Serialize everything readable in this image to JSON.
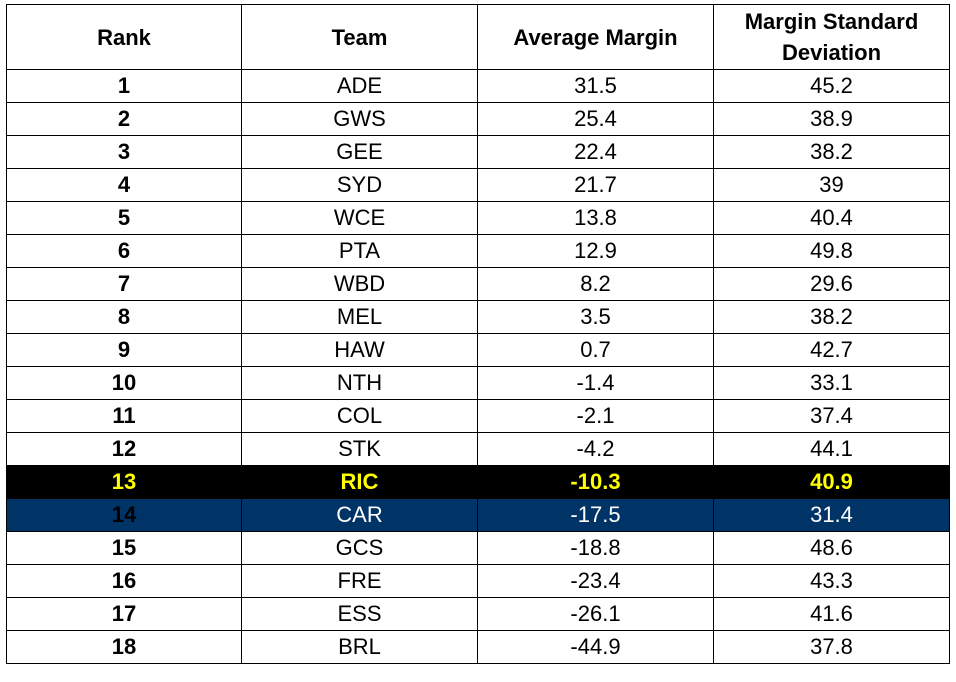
{
  "headers": {
    "rank": "Rank",
    "team": "Team",
    "avg_margin": "Average Margin",
    "sd_line1": "Margin Standard",
    "sd_line2": "Deviation"
  },
  "rows": [
    {
      "rank": "1",
      "team": "ADE",
      "avg": "31.5",
      "sd": "45.2"
    },
    {
      "rank": "2",
      "team": "GWS",
      "avg": "25.4",
      "sd": "38.9"
    },
    {
      "rank": "3",
      "team": "GEE",
      "avg": "22.4",
      "sd": "38.2"
    },
    {
      "rank": "4",
      "team": "SYD",
      "avg": "21.7",
      "sd": "39"
    },
    {
      "rank": "5",
      "team": "WCE",
      "avg": "13.8",
      "sd": "40.4"
    },
    {
      "rank": "6",
      "team": "PTA",
      "avg": "12.9",
      "sd": "49.8"
    },
    {
      "rank": "7",
      "team": "WBD",
      "avg": "8.2",
      "sd": "29.6"
    },
    {
      "rank": "8",
      "team": "MEL",
      "avg": "3.5",
      "sd": "38.2"
    },
    {
      "rank": "9",
      "team": "HAW",
      "avg": "0.7",
      "sd": "42.7"
    },
    {
      "rank": "10",
      "team": "NTH",
      "avg": "-1.4",
      "sd": "33.1"
    },
    {
      "rank": "11",
      "team": "COL",
      "avg": "-2.1",
      "sd": "37.4"
    },
    {
      "rank": "12",
      "team": "STK",
      "avg": "-4.2",
      "sd": "44.1"
    },
    {
      "rank": "13",
      "team": "RIC",
      "avg": "-10.3",
      "sd": "40.9"
    },
    {
      "rank": "14",
      "team": "CAR",
      "avg": "-17.5",
      "sd": "31.4"
    },
    {
      "rank": "15",
      "team": "GCS",
      "avg": "-18.8",
      "sd": "48.6"
    },
    {
      "rank": "16",
      "team": "FRE",
      "avg": "-23.4",
      "sd": "43.3"
    },
    {
      "rank": "17",
      "team": "ESS",
      "avg": "-26.1",
      "sd": "41.6"
    },
    {
      "rank": "18",
      "team": "BRL",
      "avg": "-44.9",
      "sd": "37.8"
    }
  ],
  "highlights": {
    "RIC": {
      "background": "#000000",
      "text": "#ffff00"
    },
    "CAR": {
      "background": "#003366",
      "text": "#ffffff"
    }
  }
}
